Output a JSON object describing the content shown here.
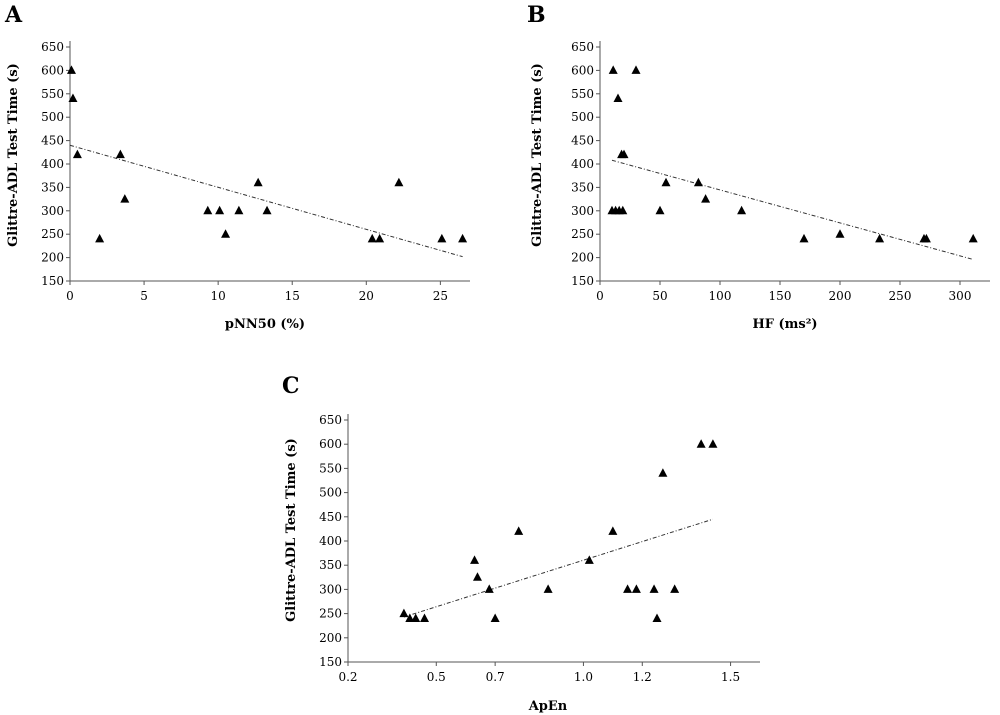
{
  "chart_data": [
    {
      "type": "scatter",
      "panel_label": "A",
      "xlabel": "pNN50 (%)",
      "ylabel": "Glittre-ADL Test Time (s)",
      "xlim": [
        0,
        27
      ],
      "ylim": [
        150,
        650
      ],
      "xticks": [
        0,
        5,
        10,
        15,
        20,
        25
      ],
      "yticks": [
        150,
        200,
        250,
        300,
        350,
        400,
        450,
        500,
        550,
        600,
        650
      ],
      "xtick_labels": [
        "0",
        "5",
        "10",
        "15",
        "20",
        "25"
      ],
      "ytick_labels": [
        "150",
        "200",
        "250",
        "300",
        "350",
        "400",
        "450",
        "500",
        "550",
        "600",
        "650"
      ],
      "points": [
        {
          "x": 0.1,
          "y": 600
        },
        {
          "x": 0.2,
          "y": 540
        },
        {
          "x": 0.5,
          "y": 420
        },
        {
          "x": 2.0,
          "y": 240
        },
        {
          "x": 3.4,
          "y": 420
        },
        {
          "x": 3.7,
          "y": 325
        },
        {
          "x": 9.3,
          "y": 300
        },
        {
          "x": 10.1,
          "y": 300
        },
        {
          "x": 10.5,
          "y": 250
        },
        {
          "x": 11.4,
          "y": 300
        },
        {
          "x": 12.7,
          "y": 360
        },
        {
          "x": 13.3,
          "y": 300
        },
        {
          "x": 20.4,
          "y": 240
        },
        {
          "x": 20.9,
          "y": 240
        },
        {
          "x": 22.2,
          "y": 360
        },
        {
          "x": 25.1,
          "y": 240
        },
        {
          "x": 26.5,
          "y": 240
        }
      ],
      "trendline": {
        "x": [
          0,
          26.5
        ],
        "y": [
          440,
          202
        ]
      }
    },
    {
      "type": "scatter",
      "panel_label": "B",
      "xlabel": "HF (ms²)",
      "ylabel": "Glittre-ADL Test Time (s)",
      "xlim": [
        0,
        325
      ],
      "ylim": [
        150,
        650
      ],
      "xticks": [
        0,
        50,
        100,
        150,
        200,
        250,
        300
      ],
      "yticks": [
        150,
        200,
        250,
        300,
        350,
        400,
        450,
        500,
        550,
        600,
        650
      ],
      "xtick_labels": [
        "0",
        "50",
        "100",
        "150",
        "200",
        "250",
        "300"
      ],
      "ytick_labels": [
        "150",
        "200",
        "250",
        "300",
        "350",
        "400",
        "450",
        "500",
        "550",
        "600",
        "650"
      ],
      "points": [
        {
          "x": 11,
          "y": 600
        },
        {
          "x": 30,
          "y": 600
        },
        {
          "x": 15,
          "y": 540
        },
        {
          "x": 18,
          "y": 420
        },
        {
          "x": 20,
          "y": 420
        },
        {
          "x": 10,
          "y": 300
        },
        {
          "x": 13,
          "y": 300
        },
        {
          "x": 16,
          "y": 300
        },
        {
          "x": 19,
          "y": 300
        },
        {
          "x": 50,
          "y": 300
        },
        {
          "x": 55,
          "y": 360
        },
        {
          "x": 82,
          "y": 360
        },
        {
          "x": 88,
          "y": 325
        },
        {
          "x": 118,
          "y": 300
        },
        {
          "x": 170,
          "y": 240
        },
        {
          "x": 200,
          "y": 250
        },
        {
          "x": 233,
          "y": 240
        },
        {
          "x": 270,
          "y": 240
        },
        {
          "x": 272,
          "y": 240
        },
        {
          "x": 311,
          "y": 240
        }
      ],
      "trendline": {
        "x": [
          10,
          311
        ],
        "y": [
          408,
          196
        ]
      }
    },
    {
      "type": "scatter",
      "panel_label": "C",
      "xlabel": "ApEn",
      "ylabel": "Glittre-ADL Test Time (s)",
      "xlim": [
        0.2,
        1.6
      ],
      "ylim": [
        150,
        650
      ],
      "xticks": [
        0.2,
        0.5,
        0.7,
        1.0,
        1.2,
        1.5
      ],
      "yticks": [
        150,
        200,
        250,
        300,
        350,
        400,
        450,
        500,
        550,
        600,
        650
      ],
      "xtick_labels": [
        "0.2",
        "0.5",
        "0.7",
        "1.0",
        "1.2",
        "1.5"
      ],
      "ytick_labels": [
        "150",
        "200",
        "250",
        "300",
        "350",
        "400",
        "450",
        "500",
        "550",
        "600",
        "650"
      ],
      "points": [
        {
          "x": 0.39,
          "y": 250
        },
        {
          "x": 0.41,
          "y": 240
        },
        {
          "x": 0.43,
          "y": 240
        },
        {
          "x": 0.46,
          "y": 240
        },
        {
          "x": 0.63,
          "y": 360
        },
        {
          "x": 0.64,
          "y": 325
        },
        {
          "x": 0.68,
          "y": 300
        },
        {
          "x": 0.7,
          "y": 240
        },
        {
          "x": 0.78,
          "y": 420
        },
        {
          "x": 0.88,
          "y": 300
        },
        {
          "x": 1.02,
          "y": 360
        },
        {
          "x": 1.1,
          "y": 420
        },
        {
          "x": 1.15,
          "y": 300
        },
        {
          "x": 1.18,
          "y": 300
        },
        {
          "x": 1.24,
          "y": 300
        },
        {
          "x": 1.25,
          "y": 240
        },
        {
          "x": 1.27,
          "y": 540
        },
        {
          "x": 1.31,
          "y": 300
        },
        {
          "x": 1.4,
          "y": 600
        },
        {
          "x": 1.44,
          "y": 600
        }
      ],
      "trendline": {
        "x": [
          0.39,
          1.44
        ],
        "y": [
          243,
          445
        ]
      }
    }
  ]
}
